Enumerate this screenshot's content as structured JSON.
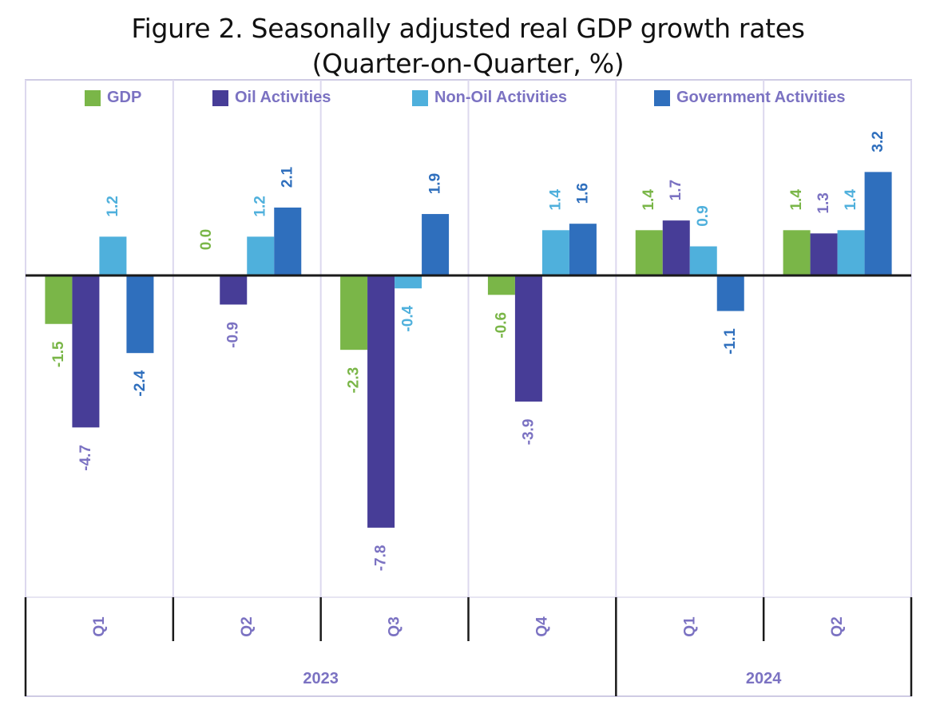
{
  "title_line1": "Figure 2. Seasonally adjusted real GDP growth rates",
  "title_line2": "(Quarter-on-Quarter, %)",
  "chart_data": {
    "type": "bar",
    "title": "Figure 2. Seasonally adjusted real GDP growth rates (Quarter-on-Quarter, %)",
    "categories": [
      "Q1",
      "Q2",
      "Q3",
      "Q4",
      "Q1",
      "Q2"
    ],
    "groups": [
      {
        "label": "2023",
        "span": 4
      },
      {
        "label": "2024",
        "span": 2
      }
    ],
    "series": [
      {
        "name": "GDP",
        "color": "#7ab648",
        "values": [
          -1.5,
          0.0,
          -2.3,
          -0.6,
          1.4,
          1.4
        ],
        "labels": [
          "-1.5",
          "0.0",
          "-2.3",
          "-0.6",
          "1.4",
          "1.4"
        ]
      },
      {
        "name": "Oil Activities",
        "color": "#473d97",
        "values": [
          -4.7,
          -0.9,
          -7.8,
          -3.9,
          1.7,
          1.3
        ],
        "labels": [
          "-4.7",
          "-0.9",
          "-7.8",
          "-3.9",
          "1.7",
          "1.3"
        ]
      },
      {
        "name": "Non-Oil Activities",
        "color": "#4fb0dc",
        "values": [
          1.2,
          1.2,
          -0.4,
          1.4,
          0.9,
          1.4
        ],
        "labels": [
          "1.2",
          "1.2",
          "-0.4",
          "1.4",
          "0.9",
          "1.4"
        ]
      },
      {
        "name": "Government Activities",
        "color": "#2f6fbd",
        "values": [
          -2.4,
          2.1,
          1.9,
          1.6,
          -1.1,
          3.2
        ],
        "labels": [
          "-2.4",
          "2.1",
          "1.9",
          "1.6",
          "-1.1",
          "3.2"
        ]
      }
    ],
    "label_colors": [
      "#7ab648",
      "#7b72c2",
      "#4fb0dc",
      "#2f6fbd"
    ],
    "category_label_color": "#7b72c2",
    "ylim": [
      -10,
      6
    ],
    "grid": "vertical",
    "legend_position": "top"
  }
}
